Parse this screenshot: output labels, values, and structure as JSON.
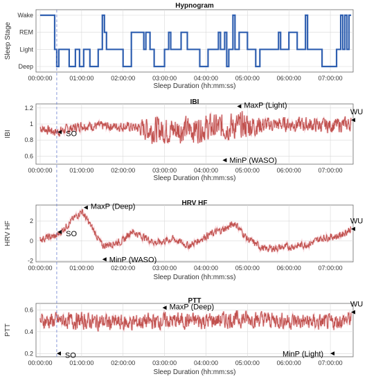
{
  "chart_data": [
    {
      "type": "line",
      "title": "Hypnogram",
      "xlabel": "Sleep Duration (hh:mm:ss)",
      "ylabel": "Sleep Stage",
      "x_unit": "hours",
      "xlim": [
        -0.1,
        7.55
      ],
      "x_ticks": [
        "00:00:00",
        "01:00:00",
        "02:00:00",
        "03:00:00",
        "04:00:00",
        "05:00:00",
        "06:00:00",
        "07:00:00"
      ],
      "y_categories": [
        "Deep",
        "Light",
        "REM",
        "Wake"
      ],
      "grid": true,
      "line_color": "#2f5fb0",
      "series": [
        {
          "steps": [
            [
              0.0,
              "Wake"
            ],
            [
              0.35,
              "Light"
            ],
            [
              0.4,
              "Deep"
            ],
            [
              0.45,
              "Light"
            ],
            [
              0.7,
              "Deep"
            ],
            [
              0.85,
              "Light"
            ],
            [
              0.95,
              "Deep"
            ],
            [
              1.05,
              "Light"
            ],
            [
              1.2,
              "Deep"
            ],
            [
              1.4,
              "Light"
            ],
            [
              1.5,
              "Wake"
            ],
            [
              1.55,
              "REM"
            ],
            [
              1.6,
              "Light"
            ],
            [
              2.0,
              "Deep"
            ],
            [
              2.2,
              "REM"
            ],
            [
              2.5,
              "Light"
            ],
            [
              2.55,
              "REM"
            ],
            [
              2.65,
              "Light"
            ],
            [
              2.75,
              "Deep"
            ],
            [
              3.0,
              "Light"
            ],
            [
              3.1,
              "REM"
            ],
            [
              3.15,
              "Light"
            ],
            [
              3.4,
              "REM"
            ],
            [
              3.55,
              "Light"
            ],
            [
              3.85,
              "Deep"
            ],
            [
              4.05,
              "Light"
            ],
            [
              4.3,
              "REM"
            ],
            [
              4.35,
              "Light"
            ],
            [
              4.45,
              "REM"
            ],
            [
              4.5,
              "Deep"
            ],
            [
              4.55,
              "Light"
            ],
            [
              4.65,
              "Wake"
            ],
            [
              4.7,
              "Light"
            ],
            [
              4.8,
              "REM"
            ],
            [
              5.0,
              "Light"
            ],
            [
              5.2,
              "Deep"
            ],
            [
              5.3,
              "Light"
            ],
            [
              5.75,
              "REM"
            ],
            [
              5.8,
              "Light"
            ],
            [
              6.0,
              "REM"
            ],
            [
              6.2,
              "Light"
            ],
            [
              6.4,
              "Wake"
            ],
            [
              6.45,
              "Light"
            ],
            [
              6.8,
              "Deep"
            ],
            [
              7.15,
              "Light"
            ],
            [
              7.25,
              "Wake"
            ],
            [
              7.3,
              "Light"
            ],
            [
              7.35,
              "Wake"
            ],
            [
              7.4,
              "Light"
            ],
            [
              7.45,
              "Wake"
            ],
            [
              7.5,
              "Wake"
            ]
          ]
        }
      ]
    },
    {
      "type": "line",
      "title": "IBI",
      "xlabel": "Sleep Duration (hh:mm:ss)",
      "ylabel": "IBI",
      "xlim": [
        -0.1,
        7.55
      ],
      "ylim": [
        0.5,
        1.25
      ],
      "x_ticks": [
        "00:00:00",
        "01:00:00",
        "02:00:00",
        "03:00:00",
        "04:00:00",
        "05:00:00",
        "06:00:00",
        "07:00:00"
      ],
      "y_ticks": [
        0.6,
        0.8,
        1,
        1.2
      ],
      "grid": true,
      "line_color": "#c0504d",
      "series": [
        {
          "mean_curve": [
            [
              0,
              0.95
            ],
            [
              0.4,
              0.9
            ],
            [
              1.0,
              0.98
            ],
            [
              2.0,
              0.97
            ],
            [
              3.0,
              0.92
            ],
            [
              4.0,
              0.95
            ],
            [
              5.0,
              0.98
            ],
            [
              6.0,
              1.0
            ],
            [
              7.0,
              0.98
            ],
            [
              7.5,
              1.0
            ]
          ],
          "variability": [
            [
              0,
              0.08
            ],
            [
              2.3,
              0.08
            ],
            [
              2.6,
              0.22
            ],
            [
              5.0,
              0.22
            ],
            [
              5.5,
              0.12
            ],
            [
              7.5,
              0.12
            ]
          ]
        }
      ],
      "annotations": [
        {
          "label": "SO",
          "x": 0.42,
          "y": 0.9
        },
        {
          "label": "MaxP (Light)",
          "x": 4.75,
          "y": 1.22
        },
        {
          "label": "WU",
          "x": 7.5,
          "y": 1.05
        },
        {
          "label": "MinP (WASO)",
          "x": 4.4,
          "y": 0.55
        }
      ]
    },
    {
      "type": "line",
      "title": "HRV HF",
      "xlabel": "Sleep Duration (hh:mm:ss)",
      "ylabel": "HRV HF",
      "xlim": [
        -0.1,
        7.55
      ],
      "ylim": [
        -2.1,
        3.6
      ],
      "x_ticks": [
        "00:00:00",
        "01:00:00",
        "02:00:00",
        "03:00:00",
        "04:00:00",
        "05:00:00",
        "06:00:00",
        "07:00:00"
      ],
      "y_ticks": [
        -2,
        0,
        2
      ],
      "grid": true,
      "line_color": "#c0504d",
      "series": [
        {
          "mean_curve": [
            [
              0,
              0.2
            ],
            [
              0.4,
              0.5
            ],
            [
              0.8,
              2.2
            ],
            [
              1.0,
              3.0
            ],
            [
              1.3,
              1.0
            ],
            [
              1.5,
              -0.5
            ],
            [
              2.0,
              0.0
            ],
            [
              2.2,
              1.0
            ],
            [
              2.8,
              -0.2
            ],
            [
              3.2,
              0.2
            ],
            [
              3.6,
              -0.5
            ],
            [
              4.0,
              0.5
            ],
            [
              4.5,
              1.3
            ],
            [
              4.7,
              1.8
            ],
            [
              5.0,
              0.2
            ],
            [
              5.4,
              -0.8
            ],
            [
              6.0,
              -0.6
            ],
            [
              6.5,
              -0.3
            ],
            [
              6.8,
              0.3
            ],
            [
              7.2,
              0.5
            ],
            [
              7.5,
              1.2
            ]
          ],
          "variability": [
            [
              0,
              0.5
            ],
            [
              7.5,
              0.5
            ]
          ]
        }
      ],
      "annotations": [
        {
          "label": "SO",
          "x": 0.42,
          "y": 0.9
        },
        {
          "label": "MaxP (Deep)",
          "x": 1.05,
          "y": 3.35
        },
        {
          "label": "MinP (WASO)",
          "x": 1.5,
          "y": -1.85
        },
        {
          "label": "WU",
          "x": 7.5,
          "y": 1.2
        }
      ]
    },
    {
      "type": "line",
      "title": "PTT",
      "xlabel": "Sleep Duration (hh:mm:ss)",
      "ylabel": "PTT",
      "xlim": [
        -0.1,
        7.55
      ],
      "ylim": [
        0.17,
        0.66
      ],
      "x_ticks": [
        "00:00:00",
        "01:00:00",
        "02:00:00",
        "03:00:00",
        "04:00:00",
        "05:00:00",
        "06:00:00",
        "07:00:00"
      ],
      "y_ticks": [
        0.2,
        0.4,
        0.6
      ],
      "grid": true,
      "line_color": "#c0504d",
      "series": [
        {
          "mean_curve": [
            [
              0,
              0.5
            ],
            [
              1.0,
              0.5
            ],
            [
              2.0,
              0.48
            ],
            [
              3.0,
              0.5
            ],
            [
              4.0,
              0.5
            ],
            [
              5.0,
              0.52
            ],
            [
              6.0,
              0.5
            ],
            [
              7.0,
              0.48
            ],
            [
              7.5,
              0.52
            ]
          ],
          "variability": [
            [
              0,
              0.1
            ],
            [
              7.5,
              0.1
            ]
          ]
        }
      ],
      "annotations": [
        {
          "label": "SO",
          "x": 0.4,
          "y": 0.2
        },
        {
          "label": "MaxP (Deep)",
          "x": 2.95,
          "y": 0.62
        },
        {
          "label": "WU",
          "x": 7.5,
          "y": 0.58
        },
        {
          "label": "MinP (Light)",
          "x": 7.0,
          "y": 0.2
        }
      ]
    }
  ],
  "so_marker_x": 0.4
}
